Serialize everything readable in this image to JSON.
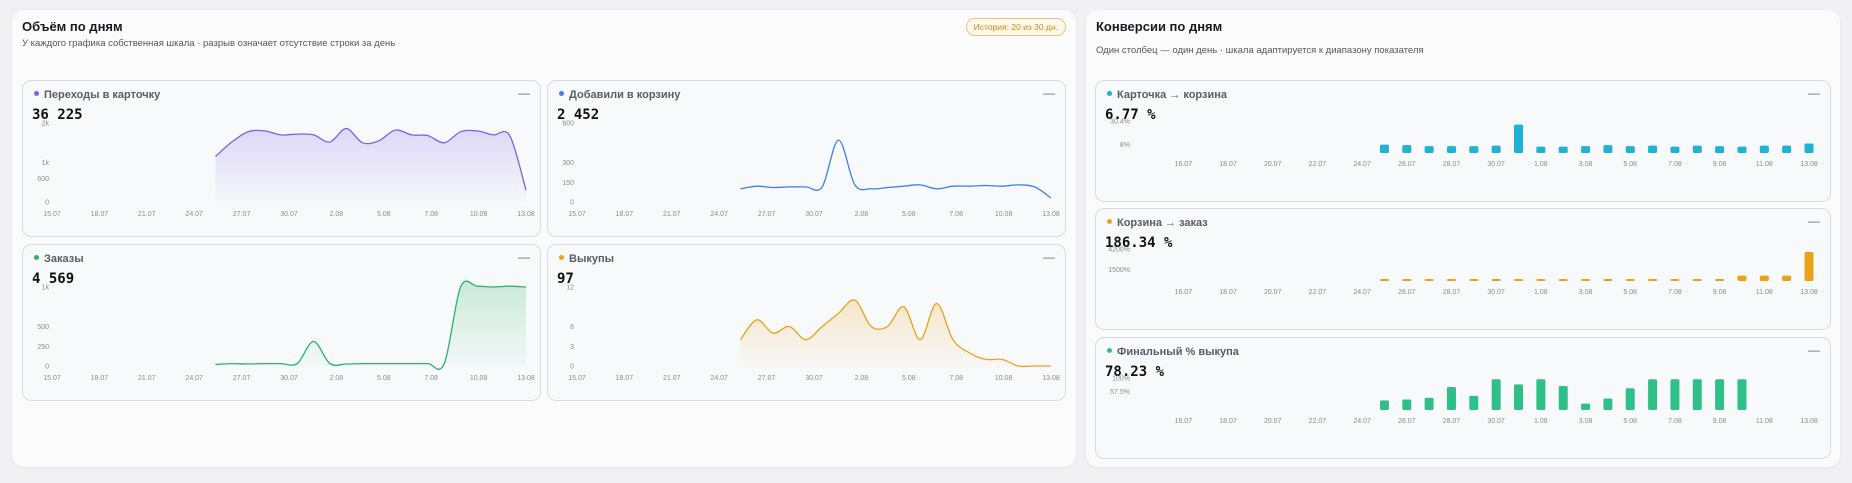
{
  "volume": {
    "title": "Объём по дням",
    "subtitle": "У каждого графика собственная шкала · разрыв означает отсутствие строки за день",
    "badge": "История: 20 из 30 дн.",
    "charts": [
      {
        "id": "clicks",
        "title": "Переходы в карточку",
        "value": "36 225",
        "color": "#7a63e6",
        "chart_data": {
          "type": "area",
          "title": "Переходы в карточку",
          "y_ticks": [
            "2k",
            "1k",
            "600",
            "0"
          ],
          "y_tick_values": [
            2000,
            1000,
            600,
            0
          ],
          "ylim": [
            0,
            2000
          ],
          "x_ticks": [
            "15.07",
            "18.07",
            "21.07",
            "24.07",
            "27.07",
            "30.07",
            "2.08",
            "5.08",
            "7.08",
            "10.08",
            "13.08"
          ],
          "x": [
            "25.07",
            "26.07",
            "27.07",
            "28.07",
            "29.07",
            "30.07",
            "31.07",
            "1.08",
            "2.08",
            "3.08",
            "4.08",
            "5.08",
            "6.08",
            "7.08",
            "8.08",
            "9.08",
            "10.08",
            "11.08",
            "12.08",
            "13.08"
          ],
          "values": [
            1150,
            1520,
            1780,
            1800,
            1700,
            1720,
            1700,
            1520,
            1860,
            1500,
            1550,
            1820,
            1700,
            1680,
            1500,
            1780,
            1800,
            1700,
            1680,
            300
          ]
        }
      },
      {
        "id": "cart",
        "title": "Добавили в корзину",
        "value": "2 452",
        "color": "#3f80ec",
        "chart_data": {
          "type": "line",
          "title": "Добавили в корзину",
          "y_ticks": [
            "600",
            "300",
            "150",
            "0"
          ],
          "y_tick_values": [
            600,
            300,
            150,
            0
          ],
          "ylim": [
            0,
            600
          ],
          "x_ticks": [
            "15.07",
            "18.07",
            "21.07",
            "24.07",
            "27.07",
            "30.07",
            "2.08",
            "5.08",
            "7.08",
            "10.08",
            "13.08"
          ],
          "x": [
            "25.07",
            "26.07",
            "27.07",
            "28.07",
            "29.07",
            "30.07",
            "31.07",
            "1.08",
            "2.08",
            "3.08",
            "4.08",
            "5.08",
            "6.08",
            "7.08",
            "8.08",
            "9.08",
            "10.08",
            "11.08",
            "12.08",
            "13.08"
          ],
          "values": [
            100,
            120,
            110,
            115,
            115,
            115,
            470,
            130,
            100,
            110,
            120,
            130,
            100,
            120,
            120,
            125,
            120,
            130,
            115,
            30
          ]
        }
      },
      {
        "id": "orders",
        "title": "Заказы",
        "value": "4 569",
        "color": "#27b566",
        "chart_data": {
          "type": "area",
          "title": "Заказы",
          "y_ticks": [
            "1k",
            "500",
            "250",
            "0"
          ],
          "y_tick_values": [
            1000,
            500,
            250,
            0
          ],
          "ylim": [
            0,
            1000
          ],
          "x_ticks": [
            "15.07",
            "18.07",
            "21.07",
            "24.07",
            "27.07",
            "30.07",
            "2.08",
            "5.08",
            "7.08",
            "10.08",
            "13.08"
          ],
          "x": [
            "25.07",
            "26.07",
            "27.07",
            "28.07",
            "29.07",
            "30.07",
            "31.07",
            "1.08",
            "2.08",
            "3.08",
            "4.08",
            "5.08",
            "6.08",
            "7.08",
            "8.08",
            "9.08",
            "10.08",
            "11.08",
            "12.08",
            "13.08"
          ],
          "values": [
            20,
            30,
            25,
            30,
            30,
            30,
            310,
            30,
            25,
            30,
            30,
            30,
            30,
            30,
            30,
            1000,
            1010,
            1000,
            1010,
            1000
          ]
        }
      },
      {
        "id": "buyouts",
        "title": "Выкупы",
        "value": "97",
        "color": "#eaa21a",
        "chart_data": {
          "type": "area",
          "title": "Выкупы",
          "y_ticks": [
            "12",
            "6",
            "3",
            "0"
          ],
          "y_tick_values": [
            12,
            6,
            3,
            0
          ],
          "ylim": [
            0,
            12
          ],
          "x_ticks": [
            "15.07",
            "18.07",
            "21.07",
            "24.07",
            "27.07",
            "30.07",
            "2.08",
            "5.08",
            "7.08",
            "10.08",
            "13.08"
          ],
          "x": [
            "25.07",
            "26.07",
            "27.07",
            "28.07",
            "29.07",
            "30.07",
            "31.07",
            "1.08",
            "2.08",
            "3.08",
            "4.08",
            "5.08",
            "6.08",
            "7.08",
            "8.08",
            "9.08",
            "10.08",
            "11.08",
            "12.08",
            "13.08"
          ],
          "values": [
            4,
            7,
            5,
            6,
            4,
            6,
            8,
            10,
            6,
            6,
            9,
            4,
            9.5,
            4,
            2,
            1,
            1,
            0,
            0,
            0
          ]
        }
      }
    ]
  },
  "conversions": {
    "title": "Конверсии по дням",
    "subtitle": "Один столбец — один день · шкала адаптируется к диапазону показателя",
    "charts": [
      {
        "id": "card_to_cart",
        "title": "Карточка → корзина",
        "value": "6.77 %",
        "color": "#1eb3d5",
        "chart_data": {
          "type": "bar",
          "title": "Карточка → корзина",
          "y_ticks": [
            "30.4%",
            "8%"
          ],
          "y_tick_values": [
            30.4,
            8
          ],
          "ylim": [
            0,
            30.4
          ],
          "x_ticks": [
            "16.07",
            "18.07",
            "20.07",
            "22.07",
            "24.07",
            "26.07",
            "28.07",
            "30.07",
            "1.08",
            "3.08",
            "5.08",
            "7.08",
            "9.08",
            "11.08",
            "13.08"
          ],
          "x": [
            "25.07",
            "26.07",
            "27.07",
            "28.07",
            "29.07",
            "30.07",
            "31.07",
            "1.08",
            "2.08",
            "3.08",
            "4.08",
            "5.08",
            "6.08",
            "7.08",
            "8.08",
            "9.08",
            "10.08",
            "11.08",
            "12.08",
            "13.08"
          ],
          "values": [
            8,
            7.5,
            6.5,
            6.5,
            6.5,
            7,
            27,
            6,
            6,
            6.5,
            7.5,
            6.5,
            7,
            6,
            7,
            6.5,
            6,
            7,
            7,
            9
          ]
        }
      },
      {
        "id": "cart_to_order",
        "title": "Корзина → заказ",
        "value": "186.34 %",
        "color": "#eaa21a",
        "chart_data": {
          "type": "bar",
          "title": "Корзина → заказ",
          "y_ticks": [
            "4200%",
            "1500%"
          ],
          "y_tick_values": [
            4200,
            1500
          ],
          "ylim": [
            0,
            4200
          ],
          "x_ticks": [
            "16.07",
            "18.07",
            "20.07",
            "22.07",
            "24.07",
            "26.07",
            "28.07",
            "30.07",
            "1.08",
            "3.08",
            "5.08",
            "7.08",
            "9.08",
            "11.08",
            "13.08"
          ],
          "x": [
            "25.07",
            "26.07",
            "27.07",
            "28.07",
            "29.07",
            "30.07",
            "31.07",
            "1.08",
            "2.08",
            "3.08",
            "4.08",
            "5.08",
            "6.08",
            "7.08",
            "8.08",
            "9.08",
            "10.08",
            "11.08",
            "12.08",
            "13.08"
          ],
          "values": [
            180,
            180,
            180,
            180,
            180,
            180,
            180,
            180,
            180,
            180,
            180,
            180,
            180,
            180,
            180,
            180,
            700,
            700,
            700,
            3800
          ]
        }
      },
      {
        "id": "final_buyout",
        "title": "Финальный % выкупа",
        "value": "78.23 %",
        "color": "#2fc08a",
        "chart_data": {
          "type": "bar",
          "title": "Финальный % выкупа",
          "y_ticks": [
            "100%",
            "57.5%"
          ],
          "y_tick_values": [
            100,
            57.5
          ],
          "ylim": [
            0,
            100
          ],
          "x_ticks": [
            "16.07",
            "18.07",
            "20.07",
            "22.07",
            "24.07",
            "26.07",
            "28.07",
            "30.07",
            "1.08",
            "3.08",
            "5.08",
            "7.08",
            "9.08",
            "11.08",
            "13.08"
          ],
          "x": [
            "25.07",
            "26.07",
            "27.07",
            "28.07",
            "29.07",
            "30.07",
            "31.07",
            "1.08",
            "2.08",
            "3.08",
            "4.08",
            "5.08",
            "6.08",
            "7.08",
            "8.08",
            "9.08",
            "10.08"
          ],
          "values": [
            30,
            33,
            38,
            72,
            44,
            96,
            80,
            96,
            75,
            20,
            36,
            68,
            96,
            96,
            96,
            96,
            96
          ]
        }
      }
    ]
  }
}
